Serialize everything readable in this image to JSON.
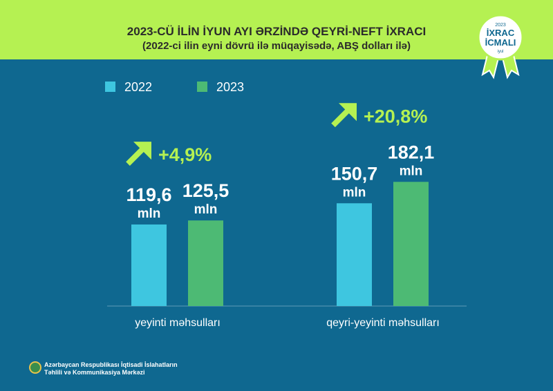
{
  "header": {
    "title": "2023-CÜ İLİN İYUN AYI ƏRZİNDƏ QEYRİ-NEFT İXRACI",
    "subtitle": "(2022-ci ilin eyni dövrü ilə müqayisədə, ABŞ dolları ilə)"
  },
  "badge": {
    "year": "2023",
    "line1": "İXRAC",
    "line2": "İCMALI",
    "month": "iyul"
  },
  "footer": {
    "line1": "Azərbaycan Respublikası İqtisadi İslahatların",
    "line2": "Təhlili və Kommunikasiya Mərkəzi"
  },
  "chart_data": {
    "type": "bar",
    "categories": [
      "yeyinti məhsulları",
      "qeyri-yeyinti məhsulları"
    ],
    "series": [
      {
        "name": "2022",
        "values": [
          119.6,
          150.7
        ],
        "labels": [
          "119,6",
          "150,7"
        ],
        "color": "#3ec6e0"
      },
      {
        "name": "2023",
        "values": [
          125.5,
          182.1
        ],
        "labels": [
          "125,5",
          "182,1"
        ],
        "color": "#4dba74"
      }
    ],
    "unit": "mln",
    "changes": [
      "+4,9%",
      "+20,8%"
    ],
    "legend": "top-left",
    "ylim": [
      0,
      200
    ]
  }
}
